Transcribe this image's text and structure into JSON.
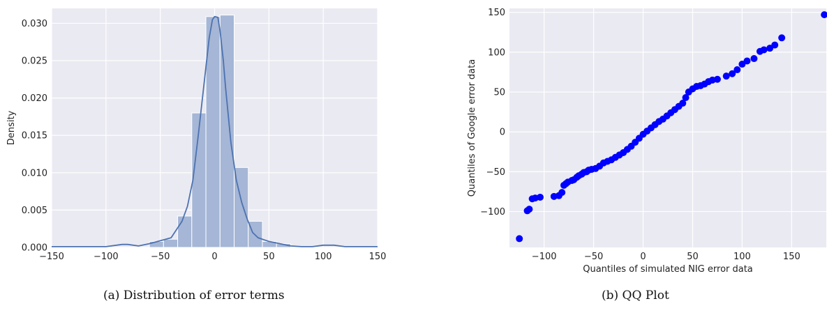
{
  "chart_data": [
    {
      "type": "bar",
      "subtype": "histogram-with-density",
      "xlabel": "",
      "ylabel": "Density",
      "xlim": [
        -150,
        150
      ],
      "ylim": [
        0,
        0.032
      ],
      "xticks": [
        -150,
        -100,
        -50,
        0,
        50,
        100,
        150
      ],
      "xtick_labels": [
        "−150",
        "−100",
        "−50",
        "0",
        "50",
        "100",
        "150"
      ],
      "yticks": [
        0,
        0.005,
        0.01,
        0.015,
        0.02,
        0.025,
        0.03
      ],
      "ytick_labels": [
        "0.000",
        "0.005",
        "0.010",
        "0.015",
        "0.020",
        "0.025",
        "0.030"
      ],
      "grid": true,
      "bar_color": "#a5b6d6",
      "line_color": "#4c72b0",
      "bins": [
        {
          "x0": -60,
          "x1": -47,
          "value": 0.0008
        },
        {
          "x0": -47,
          "x1": -34,
          "value": 0.0011
        },
        {
          "x0": -34,
          "x1": -21,
          "value": 0.0042
        },
        {
          "x0": -21,
          "x1": -8,
          "value": 0.018
        },
        {
          "x0": -8,
          "x1": 5,
          "value": 0.0309
        },
        {
          "x0": 5,
          "x1": 18,
          "value": 0.0311
        },
        {
          "x0": 18,
          "x1": 31,
          "value": 0.0107
        },
        {
          "x0": 31,
          "x1": 44,
          "value": 0.0035
        },
        {
          "x0": 44,
          "x1": 57,
          "value": 0.0008
        },
        {
          "x0": 57,
          "x1": 70,
          "value": 0.0005
        }
      ],
      "density_curve": {
        "x": [
          -150,
          -120,
          -100,
          -85,
          -80,
          -70,
          -60,
          -50,
          -40,
          -30,
          -25,
          -20,
          -15,
          -10,
          -5,
          -2,
          0,
          3,
          5,
          8,
          10,
          15,
          20,
          25,
          30,
          35,
          40,
          50,
          60,
          70,
          80,
          90,
          100,
          110,
          120,
          135,
          150
        ],
        "y": [
          0.0001,
          0.0001,
          0.0001,
          0.0004,
          0.0004,
          0.0002,
          0.0005,
          0.0009,
          0.0013,
          0.0035,
          0.0055,
          0.009,
          0.015,
          0.0215,
          0.028,
          0.0305,
          0.0309,
          0.0308,
          0.029,
          0.025,
          0.0215,
          0.014,
          0.009,
          0.006,
          0.0038,
          0.002,
          0.0013,
          0.0008,
          0.0005,
          0.0002,
          0.0001,
          0.0001,
          0.0003,
          0.0003,
          0.0001,
          0.0001,
          0.0001
        ]
      }
    },
    {
      "type": "scatter",
      "xlabel": "Quantiles of simulated NIG error data",
      "ylabel": "Quantiles of Google error data",
      "xlim": [
        -135,
        185
      ],
      "ylim": [
        -145,
        155
      ],
      "xticks": [
        -100,
        -50,
        0,
        50,
        100,
        150
      ],
      "xtick_labels": [
        "−100",
        "−50",
        "0",
        "50",
        "100",
        "150"
      ],
      "yticks": [
        -100,
        -50,
        0,
        50,
        100,
        150
      ],
      "ytick_labels": [
        "−100",
        "−50",
        "0",
        "50",
        "100",
        "150"
      ],
      "grid": true,
      "point_color": "#0000ff",
      "points": [
        [
          -125,
          -134
        ],
        [
          -117,
          -99
        ],
        [
          -115,
          -97
        ],
        [
          -112,
          -84
        ],
        [
          -109,
          -83
        ],
        [
          -104,
          -82
        ],
        [
          -90,
          -81
        ],
        [
          -85,
          -80
        ],
        [
          -82,
          -76
        ],
        [
          -80,
          -67
        ],
        [
          -78,
          -65
        ],
        [
          -76,
          -63
        ],
        [
          -72,
          -61
        ],
        [
          -70,
          -60
        ],
        [
          -67,
          -57
        ],
        [
          -65,
          -55
        ],
        [
          -62,
          -53
        ],
        [
          -60,
          -51
        ],
        [
          -57,
          -50
        ],
        [
          -55,
          -48
        ],
        [
          -52,
          -47
        ],
        [
          -48,
          -46
        ],
        [
          -44,
          -43
        ],
        [
          -40,
          -39
        ],
        [
          -36,
          -37
        ],
        [
          -32,
          -35
        ],
        [
          -28,
          -32
        ],
        [
          -24,
          -29
        ],
        [
          -20,
          -26
        ],
        [
          -16,
          -22
        ],
        [
          -12,
          -18
        ],
        [
          -8,
          -13
        ],
        [
          -4,
          -8
        ],
        [
          0,
          -3
        ],
        [
          4,
          1
        ],
        [
          8,
          5
        ],
        [
          12,
          9
        ],
        [
          16,
          13
        ],
        [
          20,
          16
        ],
        [
          24,
          20
        ],
        [
          28,
          24
        ],
        [
          32,
          28
        ],
        [
          36,
          32
        ],
        [
          40,
          36
        ],
        [
          43,
          43
        ],
        [
          46,
          50
        ],
        [
          50,
          54
        ],
        [
          54,
          57
        ],
        [
          58,
          58
        ],
        [
          62,
          60
        ],
        [
          66,
          63
        ],
        [
          70,
          65
        ],
        [
          75,
          66
        ],
        [
          84,
          70
        ],
        [
          90,
          73
        ],
        [
          95,
          78
        ],
        [
          100,
          85
        ],
        [
          105,
          89
        ],
        [
          112,
          92
        ],
        [
          118,
          101
        ],
        [
          122,
          103
        ],
        [
          128,
          105
        ],
        [
          133,
          109
        ],
        [
          140,
          118
        ],
        [
          183,
          147
        ]
      ]
    }
  ],
  "captions": {
    "a": "(a) Distribution of error terms",
    "b": "(b) QQ Plot"
  }
}
